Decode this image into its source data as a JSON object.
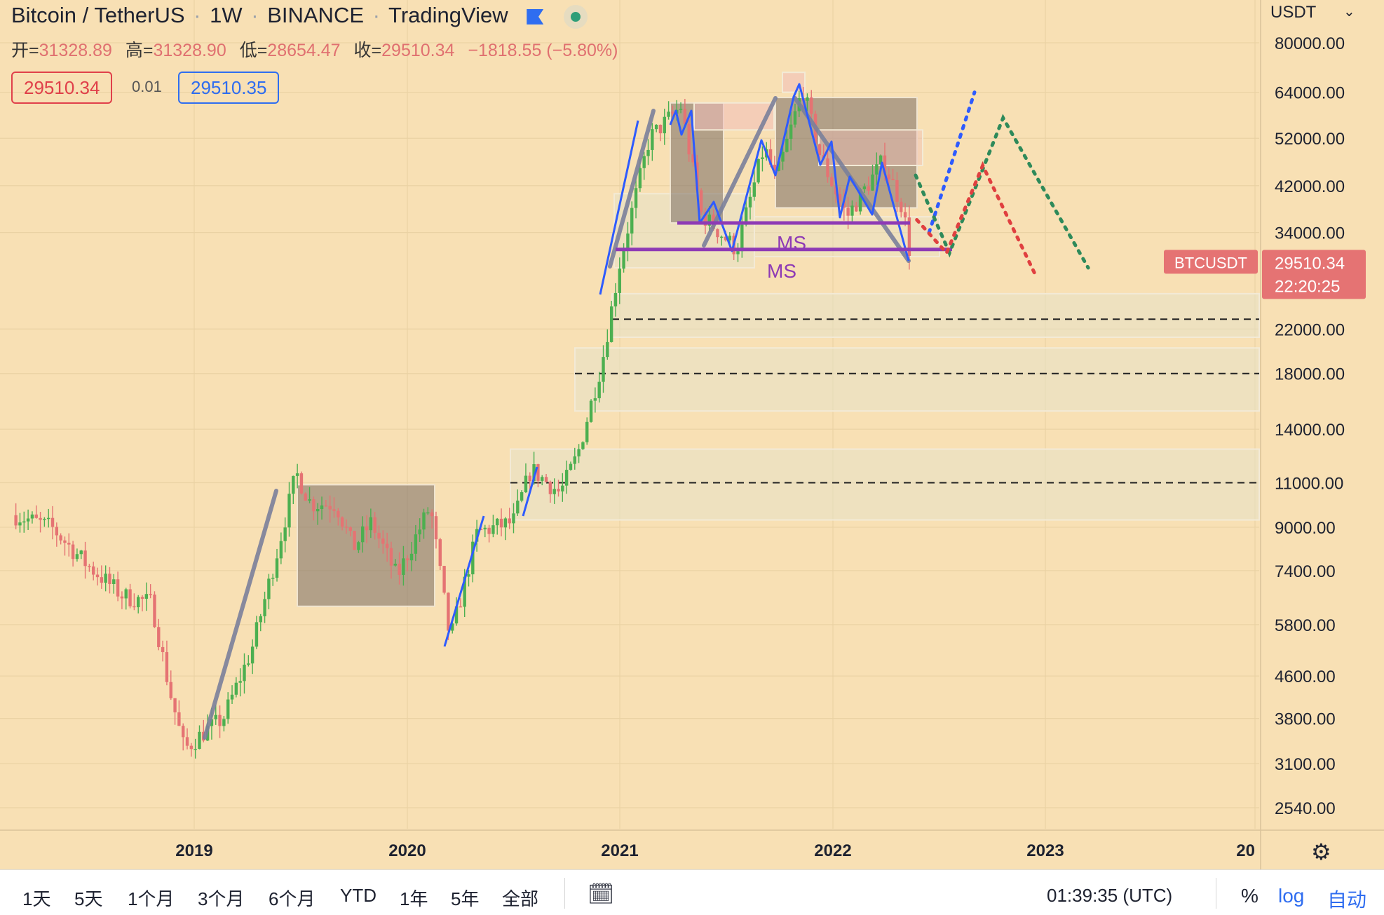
{
  "header": {
    "title": "Bitcoin / TetherUS",
    "interval": "1W",
    "exchange": "BINANCE",
    "publisher": "TradingView"
  },
  "ohlc": {
    "open_label": "开=",
    "open": "31328.89",
    "high_label": "高=",
    "high": "31328.90",
    "low_label": "低=",
    "low": "28654.47",
    "close_label": "收=",
    "close": "29510.34",
    "change": "−1818.55 (−5.80%)"
  },
  "trade": {
    "sell": "29510.34",
    "spread": "0.01",
    "buy": "29510.35"
  },
  "price_scale": {
    "currency": "USDT",
    "chevron": "⌄"
  },
  "symbol_tag": "BTCUSDT",
  "last_price": "29510.34",
  "countdown": "22:20:25",
  "bottom": {
    "timeframes": [
      "1天",
      "5天",
      "1个月",
      "3个月",
      "6个月",
      "YTD",
      "1年",
      "5年",
      "全部"
    ],
    "clock": "01:39:35 (UTC)",
    "percent": "%",
    "log": "log",
    "auto": "自动"
  },
  "colors": {
    "background": "#f8e0b4",
    "up": "#4caf50",
    "down": "#e57373",
    "trend_blue": "#2e5bff",
    "trend_gray": "#7a7f9a",
    "ms_purple": "#8e3ab5",
    "label_red": "#e57373"
  },
  "annotations": {
    "ms_upper": "MS",
    "ms_lower": "MS"
  },
  "chart_data": {
    "type": "candlestick",
    "title": "Bitcoin / TetherUS · 1W · BINANCE",
    "scale": "log",
    "y_ticks": [
      80000,
      64000,
      52000,
      42000,
      34000,
      22000,
      18000,
      14000,
      11000,
      9000,
      7400,
      5800,
      4600,
      3800,
      3100,
      2540
    ],
    "y_tick_labels": [
      "80000.00",
      "64000.00",
      "52000.00",
      "42000.00",
      "34000.00",
      "22000.00",
      "18000.00",
      "14000.00",
      "11000.00",
      "9000.00",
      "7400.00",
      "5800.00",
      "4600.00",
      "3800.00",
      "3100.00",
      "2540.00"
    ],
    "x_ticks": [
      "2019",
      "2020",
      "2021",
      "2022",
      "2023",
      "20"
    ],
    "ylim": [
      2300,
      95000
    ],
    "grid": true,
    "horizontal_levels": [
      23000,
      18000,
      11000
    ],
    "ms_levels": [
      35500,
      31500
    ],
    "last_close": 29510.34,
    "anchors": [
      {
        "date": "2018-03-01",
        "price": 9500
      },
      {
        "date": "2018-05-01",
        "price": 9000
      },
      {
        "date": "2018-07-01",
        "price": 7600
      },
      {
        "date": "2018-09-01",
        "price": 6600
      },
      {
        "date": "2018-10-20",
        "price": 6400
      },
      {
        "date": "2018-11-20",
        "price": 4300
      },
      {
        "date": "2018-12-15",
        "price": 3300
      },
      {
        "date": "2019-01-15",
        "price": 3550
      },
      {
        "date": "2019-02-20",
        "price": 3800
      },
      {
        "date": "2019-04-10",
        "price": 5200
      },
      {
        "date": "2019-05-25",
        "price": 8200
      },
      {
        "date": "2019-06-25",
        "price": 11500
      },
      {
        "date": "2019-07-20",
        "price": 10000
      },
      {
        "date": "2019-09-01",
        "price": 10000
      },
      {
        "date": "2019-10-01",
        "price": 8200
      },
      {
        "date": "2019-11-01",
        "price": 9200
      },
      {
        "date": "2019-12-15",
        "price": 7200
      },
      {
        "date": "2020-02-10",
        "price": 9900
      },
      {
        "date": "2020-03-15",
        "price": 5400
      },
      {
        "date": "2020-05-01",
        "price": 8800
      },
      {
        "date": "2020-07-01",
        "price": 9200
      },
      {
        "date": "2020-08-01",
        "price": 11700
      },
      {
        "date": "2020-09-20",
        "price": 10500
      },
      {
        "date": "2020-10-20",
        "price": 12500
      },
      {
        "date": "2020-12-01",
        "price": 19000
      },
      {
        "date": "2021-01-01",
        "price": 30000
      },
      {
        "date": "2021-02-20",
        "price": 52000
      },
      {
        "date": "2021-04-15",
        "price": 60000
      },
      {
        "date": "2021-05-20",
        "price": 37000
      },
      {
        "date": "2021-07-20",
        "price": 31500
      },
      {
        "date": "2021-09-05",
        "price": 50000
      },
      {
        "date": "2021-09-25",
        "price": 43000
      },
      {
        "date": "2021-11-10",
        "price": 65000
      },
      {
        "date": "2021-12-10",
        "price": 48000
      },
      {
        "date": "2022-01-25",
        "price": 36500
      },
      {
        "date": "2022-03-28",
        "price": 47000
      },
      {
        "date": "2022-05-01",
        "price": 38000
      },
      {
        "date": "2022-05-16",
        "price": 29510
      }
    ],
    "projections": [
      {
        "name": "blue",
        "color": "#2e5bff",
        "points": [
          {
            "date": "2022-06-15",
            "price": 34000
          },
          {
            "date": "2022-09-01",
            "price": 64000
          }
        ]
      },
      {
        "name": "green",
        "color": "#2e8a5a",
        "points": [
          {
            "date": "2022-05-23",
            "price": 44000
          },
          {
            "date": "2022-07-20",
            "price": 31000
          },
          {
            "date": "2022-10-20",
            "price": 57000
          },
          {
            "date": "2023-03-15",
            "price": 29000
          }
        ]
      },
      {
        "name": "red",
        "color": "#e04040",
        "points": [
          {
            "date": "2022-05-25",
            "price": 36000
          },
          {
            "date": "2022-07-15",
            "price": 31000
          },
          {
            "date": "2022-09-15",
            "price": 46000
          },
          {
            "date": "2022-12-15",
            "price": 28000
          }
        ]
      }
    ]
  }
}
